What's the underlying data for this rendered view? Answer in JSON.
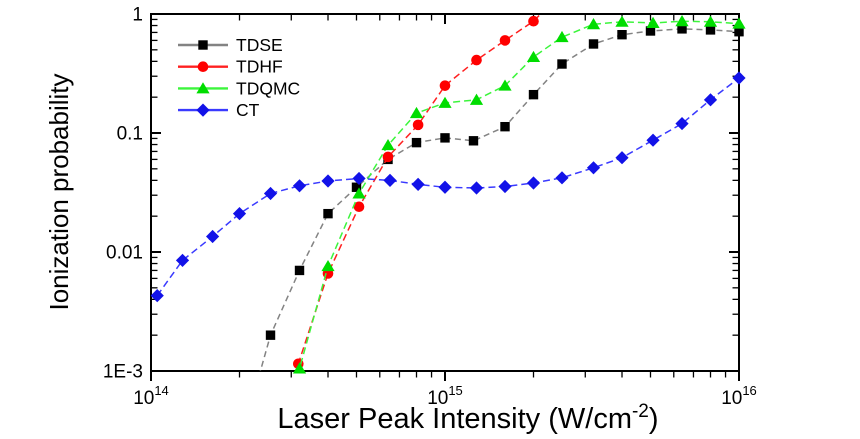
{
  "figure": {
    "background": "#ffffff",
    "frame_color": "#000000"
  },
  "chart_data": {
    "type": "line",
    "title": "",
    "xlabel": "Laser Peak Intensity (W/cm^-2)",
    "xlabel_parts": {
      "main": "Laser Peak Intensity (W/cm",
      "sup": "-2",
      "close": ")"
    },
    "ylabel": "Ionization probability",
    "x_scale": "log",
    "y_scale": "log",
    "xlim": [
      100000000000000.0,
      1e+16
    ],
    "ylim": [
      0.001,
      1
    ],
    "grid": false,
    "legend_position": "top-left",
    "x_major_ticks": [
      {
        "base": "10",
        "exp": "14",
        "value": 100000000000000.0
      },
      {
        "base": "10",
        "exp": "15",
        "value": 1000000000000000.0
      },
      {
        "base": "10",
        "exp": "16",
        "value": 1e+16
      }
    ],
    "y_major_ticks": [
      {
        "label": "1",
        "value": 1
      },
      {
        "label": "0.1",
        "value": 0.1
      },
      {
        "label": "0.01",
        "value": 0.01
      },
      {
        "label": "1E-3",
        "value": 0.001
      }
    ],
    "series": [
      {
        "name": "TDSE",
        "marker": "square",
        "marker_color": "#000000",
        "line_color": "#838383",
        "line_dash": "6,4",
        "line_pre": [
          228000000000000.0,
          0.00075
        ],
        "points": [
          [
            255000000000000.0,
            0.002
          ],
          [
            320000000000000.0,
            0.007
          ],
          [
            400000000000000.0,
            0.021
          ],
          [
            500000000000000.0,
            0.035
          ],
          [
            640000000000000.0,
            0.06
          ],
          [
            800000000000000.0,
            0.083
          ],
          [
            1000000000000000.0,
            0.091
          ],
          [
            1250000000000000.0,
            0.086
          ],
          [
            1600000000000000.0,
            0.113
          ],
          [
            2000000000000000.0,
            0.21
          ],
          [
            2500000000000000.0,
            0.38
          ],
          [
            3200000000000000.0,
            0.56
          ],
          [
            4000000000000000.0,
            0.67
          ],
          [
            5000000000000000.0,
            0.72
          ],
          [
            6400000000000000.0,
            0.75
          ],
          [
            8000000000000000.0,
            0.735
          ],
          [
            1e+16,
            0.71
          ]
        ]
      },
      {
        "name": "TDHF",
        "marker": "circle",
        "marker_color": "#ff0000",
        "line_color": "#ff2020",
        "line_dash": "7,4",
        "line_pre": [
          305000000000000.0,
          0.00075
        ],
        "line_post": [
          2350000000000000.0,
          1.3
        ],
        "points": [
          [
            317000000000000.0,
            0.00115
          ],
          [
            400000000000000.0,
            0.0066
          ],
          [
            510000000000000.0,
            0.024
          ],
          [
            640000000000000.0,
            0.063
          ],
          [
            810000000000000.0,
            0.117
          ],
          [
            1000000000000000.0,
            0.25
          ],
          [
            1280000000000000.0,
            0.41
          ],
          [
            1600000000000000.0,
            0.6
          ],
          [
            2000000000000000.0,
            0.87
          ]
        ]
      },
      {
        "name": "TDQMC",
        "marker": "triangle",
        "marker_color": "#00dd00",
        "line_color": "#3cf53c",
        "line_dash": "7,4",
        "line_pre": [
          308000000000000.0,
          0.00075
        ],
        "points": [
          [
            320000000000000.0,
            0.00105
          ],
          [
            400000000000000.0,
            0.0076
          ],
          [
            510000000000000.0,
            0.031
          ],
          [
            640000000000000.0,
            0.079
          ],
          [
            800000000000000.0,
            0.147
          ],
          [
            1000000000000000.0,
            0.179
          ],
          [
            1280000000000000.0,
            0.19
          ],
          [
            1600000000000000.0,
            0.25
          ],
          [
            2000000000000000.0,
            0.435
          ],
          [
            2500000000000000.0,
            0.64
          ],
          [
            3200000000000000.0,
            0.82
          ],
          [
            4000000000000000.0,
            0.86
          ],
          [
            5100000000000000.0,
            0.84
          ],
          [
            6400000000000000.0,
            0.87
          ],
          [
            8000000000000000.0,
            0.86
          ],
          [
            1e+16,
            0.83
          ]
        ]
      },
      {
        "name": "CT",
        "marker": "diamond",
        "marker_color": "#1212e8",
        "line_color": "#3a3aff",
        "line_dash": "7,4",
        "points": [
          [
            105000000000000.0,
            0.0043
          ],
          [
            128000000000000.0,
            0.0085
          ],
          [
            162000000000000.0,
            0.0135
          ],
          [
            200000000000000.0,
            0.021
          ],
          [
            255000000000000.0,
            0.031
          ],
          [
            320000000000000.0,
            0.036
          ],
          [
            400000000000000.0,
            0.0395
          ],
          [
            510000000000000.0,
            0.0415
          ],
          [
            650000000000000.0,
            0.04
          ],
          [
            810000000000000.0,
            0.037
          ],
          [
            1000000000000000.0,
            0.035
          ],
          [
            1280000000000000.0,
            0.0345
          ],
          [
            1600000000000000.0,
            0.0355
          ],
          [
            2000000000000000.0,
            0.038
          ],
          [
            2500000000000000.0,
            0.042
          ],
          [
            3200000000000000.0,
            0.051
          ],
          [
            4000000000000000.0,
            0.062
          ],
          [
            5100000000000000.0,
            0.087
          ],
          [
            6400000000000000.0,
            0.12
          ],
          [
            8000000000000000.0,
            0.19
          ],
          [
            1e+16,
            0.29
          ]
        ]
      }
    ]
  }
}
